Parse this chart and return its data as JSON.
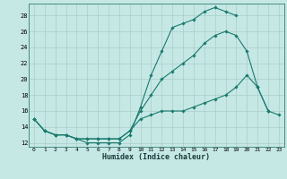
{
  "title": "",
  "xlabel": "Humidex (Indice chaleur)",
  "bg_color": "#c5e8e5",
  "line_color": "#1a7a6e",
  "grid_color": "#aacccc",
  "xlim": [
    -0.5,
    23.5
  ],
  "ylim": [
    11.5,
    29.5
  ],
  "xticks": [
    0,
    1,
    2,
    3,
    4,
    5,
    6,
    7,
    8,
    9,
    10,
    11,
    12,
    13,
    14,
    15,
    16,
    17,
    18,
    19,
    20,
    21,
    22,
    23
  ],
  "yticks": [
    12,
    14,
    16,
    18,
    20,
    22,
    24,
    26,
    28
  ],
  "line1_x": [
    0,
    1,
    2,
    3,
    4,
    5,
    6,
    7,
    8,
    9,
    10,
    11,
    12,
    13,
    14,
    15,
    16,
    17,
    18,
    19
  ],
  "line1_y": [
    15,
    13.5,
    13,
    13,
    12.5,
    12,
    12,
    12,
    12,
    13,
    16.5,
    20.5,
    23.5,
    26.5,
    27,
    27.5,
    28.5,
    29,
    28.5,
    28
  ],
  "line2_x": [
    0,
    1,
    2,
    3,
    4,
    5,
    6,
    7,
    8,
    9,
    10,
    11,
    12,
    13,
    14,
    15,
    16,
    17,
    18,
    19,
    20,
    21,
    22
  ],
  "line2_y": [
    15,
    13.5,
    13,
    13,
    12.5,
    12.5,
    12.5,
    12.5,
    12.5,
    13.5,
    16,
    18,
    20,
    21,
    22,
    23,
    24.5,
    25.5,
    26,
    25.5,
    23.5,
    19,
    16
  ],
  "line3_x": [
    0,
    1,
    2,
    3,
    4,
    5,
    6,
    7,
    8,
    9,
    10,
    11,
    12,
    13,
    14,
    15,
    16,
    17,
    18,
    19,
    20,
    21,
    22,
    23
  ],
  "line3_y": [
    15,
    13.5,
    13,
    13,
    12.5,
    12.5,
    12.5,
    12.5,
    12.5,
    13.5,
    15,
    15.5,
    16,
    16,
    16,
    16.5,
    17,
    17.5,
    18,
    19,
    20.5,
    19,
    16,
    15.5
  ]
}
